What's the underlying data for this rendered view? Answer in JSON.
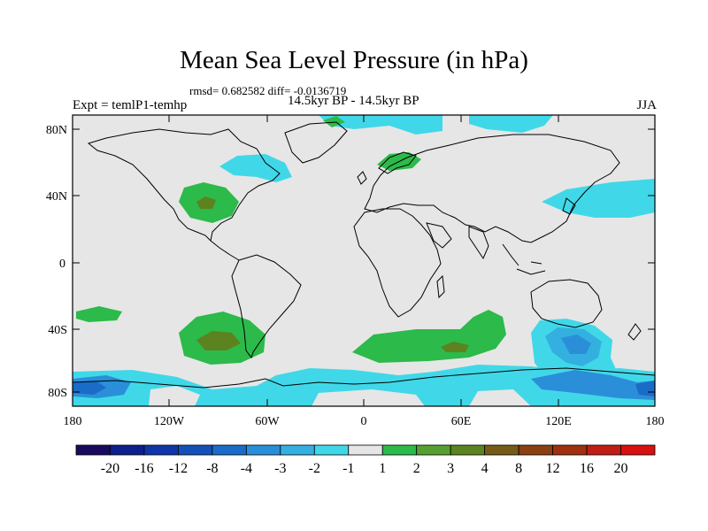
{
  "title": "Mean Sea Level Pressure (in hPa)",
  "stats_line": "rmsd= 0.682582 diff= -0.0136719",
  "period_line": "14.5kyr BP - 14.5kyr BP",
  "experiment_label": "Expt = temlP1-temhp",
  "season_label": "JJA",
  "lat_labels": [
    "80N",
    "40N",
    "0",
    "40S",
    "80S"
  ],
  "lon_labels": [
    "180",
    "120W",
    "60W",
    "0",
    "60E",
    "120E",
    "180"
  ],
  "colorbar": {
    "colors": [
      "#1a0a5e",
      "#0d1f8c",
      "#0f35a8",
      "#1450b8",
      "#1a6cc8",
      "#2a8fd8",
      "#34b0e0",
      "#40d8e8",
      "#e6e6e6",
      "#2cba4a",
      "#55a030",
      "#5d8220",
      "#765a18",
      "#8a4010",
      "#a03010",
      "#c01e14",
      "#d81010"
    ],
    "labels": [
      "-20",
      "-16",
      "-12",
      "-8",
      "-4",
      "-3",
      "-2",
      "-1",
      "1",
      "2",
      "3",
      "4",
      "8",
      "12",
      "16",
      "20"
    ]
  },
  "map_colors": {
    "ocean_bg": "#e6e6e6",
    "green": "#2cba4a",
    "dark_green": "#5d8220",
    "cyan": "#40d8e8",
    "light_blue": "#34b0e0",
    "mid_blue": "#2a8fd8",
    "deep_blue": "#1a6cc8"
  }
}
